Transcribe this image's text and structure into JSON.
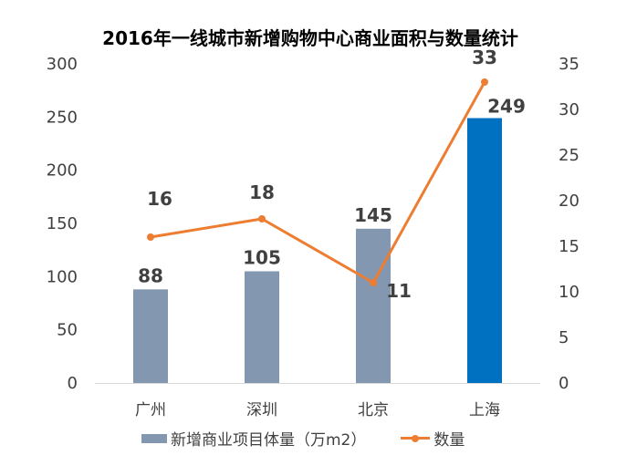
{
  "chart_data": {
    "type": "bar+line",
    "title": "2016年一线城市新增购物中心商业面积与数量统计",
    "categories": [
      "广州",
      "深圳",
      "北京",
      "上海"
    ],
    "series": [
      {
        "name": "新增商业项目体量（万m2）",
        "type": "bar",
        "axis": "left",
        "values": [
          88,
          105,
          145,
          249
        ],
        "colors": [
          "#8497b0",
          "#8497b0",
          "#8497b0",
          "#0070c0"
        ]
      },
      {
        "name": "数量",
        "type": "line",
        "axis": "right",
        "values": [
          16,
          18,
          11,
          33
        ],
        "color": "#ed7d31"
      }
    ],
    "y_left": {
      "ylim": [
        0,
        300
      ],
      "ticks": [
        0,
        50,
        100,
        150,
        200,
        250,
        300
      ]
    },
    "y_right": {
      "ylim": [
        0,
        35
      ],
      "ticks": [
        0,
        5,
        10,
        15,
        20,
        25,
        30,
        35
      ]
    },
    "grid": false,
    "legend_position": "bottom"
  }
}
